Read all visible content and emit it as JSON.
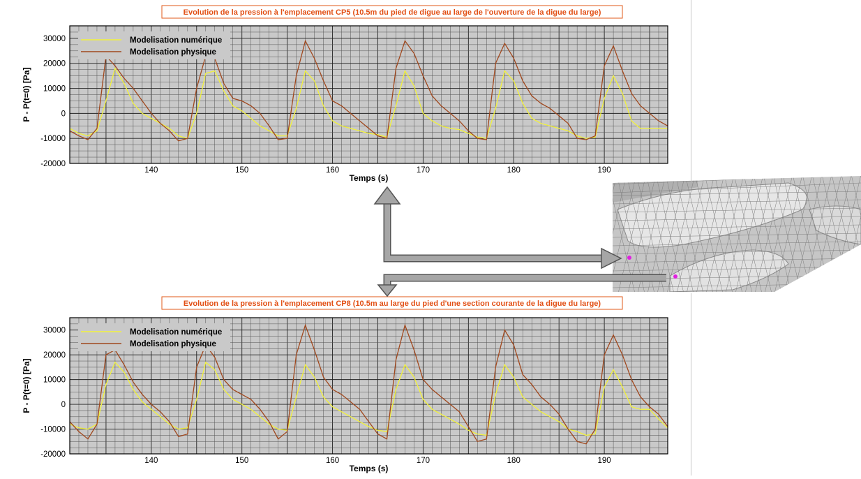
{
  "charts": [
    {
      "title": "Evolution de la pression à l'emplacement CP5 (10.5m du pied de digue au large de l'ouverture de la digue du large)",
      "xlabel": "Temps (s)",
      "ylabel": "P - P(t=0) [Pa]",
      "xticks": [
        "140",
        "150",
        "160",
        "170",
        "180",
        "190"
      ],
      "yticks": [
        "30000",
        "20000",
        "10000",
        "0",
        "-10000",
        "-20000"
      ],
      "legend": [
        "Modelisation numérique",
        "Modelisation physique"
      ]
    },
    {
      "title": "Evolution de la pression à l'emplacement CP8 (10.5m au large du pied d'une section courante de la digue du large)",
      "xlabel": "Temps (s)",
      "ylabel": "P - P(t=0) [Pa]",
      "xticks": [
        "140",
        "150",
        "160",
        "170",
        "180",
        "190"
      ],
      "yticks": [
        "30000",
        "20000",
        "10000",
        "0",
        "-10000",
        "-20000"
      ],
      "legend": [
        "Modelisation numérique",
        "Modelisation physique"
      ]
    }
  ],
  "chart_data": [
    {
      "type": "line",
      "title": "Evolution de la pression à l'emplacement CP5 (10.5m du pied de digue au large de l'ouverture de la digue du large)",
      "xlabel": "Temps (s)",
      "ylabel": "P - P(t=0) [Pa]",
      "xlim": [
        131,
        197
      ],
      "ylim": [
        -20000,
        35000
      ],
      "grid": true,
      "legend_position": "top-left",
      "colors": {
        "Modelisation numérique": "#f2f23a",
        "Modelisation physique": "#a0481e"
      },
      "series": [
        {
          "name": "Modelisation numérique",
          "x": [
            131,
            132,
            133,
            134,
            135,
            136,
            137,
            138,
            139,
            140,
            141,
            142,
            143,
            144,
            145,
            146,
            147,
            148,
            149,
            150,
            151,
            152,
            153,
            154,
            155,
            156,
            157,
            158,
            159,
            160,
            161,
            162,
            163,
            164,
            165,
            166,
            167,
            168,
            169,
            170,
            171,
            172,
            173,
            174,
            175,
            176,
            177,
            178,
            179,
            180,
            181,
            182,
            183,
            184,
            185,
            186,
            187,
            188,
            189,
            190,
            191,
            192,
            193,
            194,
            195,
            196,
            197
          ],
          "y": [
            -6000,
            -8000,
            -9000,
            -7000,
            5000,
            18000,
            12000,
            4000,
            0,
            -2000,
            -4000,
            -6000,
            -9000,
            -10000,
            0,
            16000,
            17000,
            9000,
            3000,
            1000,
            -2000,
            -5000,
            -7000,
            -9000,
            -9000,
            2000,
            17000,
            13000,
            3000,
            -3000,
            -5000,
            -6000,
            -7000,
            -8000,
            -8500,
            -9500,
            3000,
            17000,
            11000,
            0,
            -3000,
            -5000,
            -6000,
            -6500,
            -8000,
            -9500,
            -10000,
            2000,
            17000,
            13000,
            4000,
            -2000,
            -4000,
            -5000,
            -6000,
            -7000,
            -9000,
            -10000,
            -9500,
            6000,
            15000,
            8000,
            -3000,
            -6000,
            -6000,
            -6000,
            -6000
          ]
        },
        {
          "name": "Modelisation physique",
          "x": [
            131,
            132,
            133,
            134,
            135,
            136,
            137,
            138,
            139,
            140,
            141,
            142,
            143,
            144,
            145,
            146,
            147,
            148,
            149,
            150,
            151,
            152,
            153,
            154,
            155,
            156,
            157,
            158,
            159,
            160,
            161,
            162,
            163,
            164,
            165,
            166,
            167,
            168,
            169,
            170,
            171,
            172,
            173,
            174,
            175,
            176,
            177,
            178,
            179,
            180,
            181,
            182,
            183,
            184,
            185,
            186,
            187,
            188,
            189,
            190,
            191,
            192,
            193,
            194,
            195,
            196,
            197
          ],
          "y": [
            -7000,
            -9000,
            -10500,
            -6000,
            23000,
            19000,
            14000,
            10000,
            5000,
            0,
            -4000,
            -7000,
            -11000,
            -10000,
            10000,
            23000,
            22000,
            12000,
            6000,
            5000,
            3000,
            0,
            -5000,
            -10500,
            -10000,
            15000,
            29000,
            22000,
            13000,
            5000,
            3000,
            0,
            -3000,
            -6000,
            -9000,
            -10000,
            18000,
            29000,
            24000,
            15000,
            7000,
            3000,
            0,
            -3000,
            -7000,
            -10000,
            -10500,
            20000,
            28000,
            22000,
            13000,
            7000,
            4000,
            2000,
            -1000,
            -4000,
            -10000,
            -10500,
            -9000,
            19000,
            27000,
            17000,
            8000,
            3000,
            0,
            -3000,
            -5000
          ]
        }
      ]
    },
    {
      "type": "line",
      "title": "Evolution de la pression à l'emplacement CP8 (10.5m au large du pied d'une section courante de la digue du large)",
      "xlabel": "Temps (s)",
      "ylabel": "P - P(t=0) [Pa]",
      "xlim": [
        131,
        197
      ],
      "ylim": [
        -20000,
        35000
      ],
      "grid": true,
      "legend_position": "top-left",
      "colors": {
        "Modelisation numérique": "#f2f23a",
        "Modelisation physique": "#a0481e"
      },
      "series": [
        {
          "name": "Modelisation numérique",
          "x": [
            131,
            132,
            133,
            134,
            135,
            136,
            137,
            138,
            139,
            140,
            141,
            142,
            143,
            144,
            145,
            146,
            147,
            148,
            149,
            150,
            151,
            152,
            153,
            154,
            155,
            156,
            157,
            158,
            159,
            160,
            161,
            162,
            163,
            164,
            165,
            166,
            167,
            168,
            169,
            170,
            171,
            172,
            173,
            174,
            175,
            176,
            177,
            178,
            179,
            180,
            181,
            182,
            183,
            184,
            185,
            186,
            187,
            188,
            189,
            190,
            191,
            192,
            193,
            194,
            195,
            196,
            197
          ],
          "y": [
            -8000,
            -9500,
            -10000,
            -8000,
            8000,
            17000,
            13000,
            6000,
            1000,
            -2000,
            -5000,
            -8000,
            -10000,
            -9500,
            2000,
            17000,
            14000,
            6000,
            2000,
            0,
            -2000,
            -5000,
            -8000,
            -10000,
            -10500,
            3000,
            16000,
            11000,
            3000,
            -1000,
            -3000,
            -5000,
            -7000,
            -9000,
            -10500,
            -11000,
            6000,
            16000,
            11000,
            2000,
            -2000,
            -4000,
            -6000,
            -8000,
            -10500,
            -12000,
            -12500,
            4000,
            16000,
            11000,
            3000,
            0,
            -3000,
            -5000,
            -7000,
            -10000,
            -11000,
            -12500,
            -12000,
            7000,
            14000,
            7000,
            -1000,
            -2000,
            -2000,
            -6000,
            -9500
          ]
        },
        {
          "name": "Modelisation physique",
          "x": [
            131,
            132,
            133,
            134,
            135,
            136,
            137,
            138,
            139,
            140,
            141,
            142,
            143,
            144,
            145,
            146,
            147,
            148,
            149,
            150,
            151,
            152,
            153,
            154,
            155,
            156,
            157,
            158,
            159,
            160,
            161,
            162,
            163,
            164,
            165,
            166,
            167,
            168,
            169,
            170,
            171,
            172,
            173,
            174,
            175,
            176,
            177,
            178,
            179,
            180,
            181,
            182,
            183,
            184,
            185,
            186,
            187,
            188,
            189,
            190,
            191,
            192,
            193,
            194,
            195,
            196,
            197
          ],
          "y": [
            -7000,
            -11000,
            -14000,
            -8000,
            20000,
            22000,
            16000,
            9000,
            4000,
            0,
            -3000,
            -7000,
            -13000,
            -12000,
            15000,
            24000,
            19000,
            10000,
            6000,
            4000,
            2000,
            -2000,
            -7000,
            -14000,
            -11000,
            20000,
            32000,
            22000,
            11000,
            6000,
            4000,
            1000,
            -2000,
            -7000,
            -12000,
            -14000,
            18000,
            32000,
            22000,
            10000,
            6000,
            3000,
            0,
            -3000,
            -9000,
            -15000,
            -14000,
            15000,
            30000,
            24000,
            12000,
            8000,
            3000,
            0,
            -4000,
            -10000,
            -15000,
            -16000,
            -10000,
            20000,
            28000,
            20000,
            10000,
            3000,
            -1000,
            -4000,
            -9000
          ]
        }
      ]
    }
  ]
}
